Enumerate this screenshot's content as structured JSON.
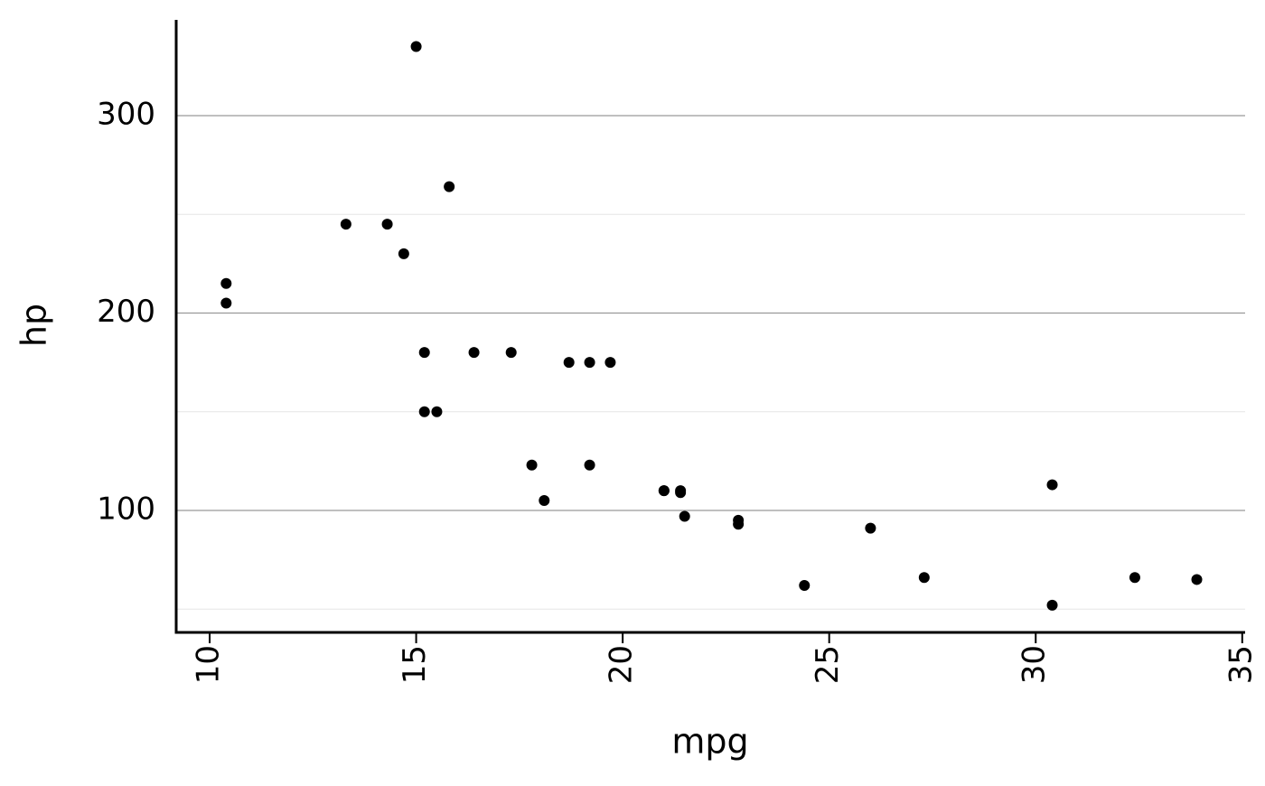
{
  "chart_data": {
    "type": "scatter",
    "x_label": "mpg",
    "y_label": "hp",
    "series": [
      {
        "color": "#000000",
        "x": [
          21.0,
          21.0,
          22.8,
          21.4,
          18.7,
          18.1,
          14.3,
          24.4,
          22.8,
          19.2,
          17.8,
          16.4,
          17.3,
          15.2,
          10.4,
          10.4,
          14.7,
          32.4,
          30.4,
          33.9,
          21.5,
          15.5,
          15.2,
          13.3,
          19.2,
          27.3,
          26.0,
          30.4,
          15.8,
          19.7,
          15.0,
          21.4
        ],
        "values": [
          110,
          110,
          93,
          110,
          175,
          105,
          245,
          62,
          95,
          123,
          123,
          180,
          180,
          180,
          205,
          215,
          230,
          66,
          52,
          65,
          97,
          150,
          150,
          245,
          175,
          66,
          91,
          113,
          264,
          175,
          335,
          109
        ]
      }
    ],
    "xlim": [
      9.19,
      35.07
    ],
    "xticks": [
      10,
      15,
      20,
      25,
      30,
      35
    ],
    "ylim": [
      38.2,
      348.5
    ],
    "yticks": [
      100,
      200,
      300
    ],
    "minor_yticks": [
      50,
      150,
      250
    ],
    "grid": true
  }
}
